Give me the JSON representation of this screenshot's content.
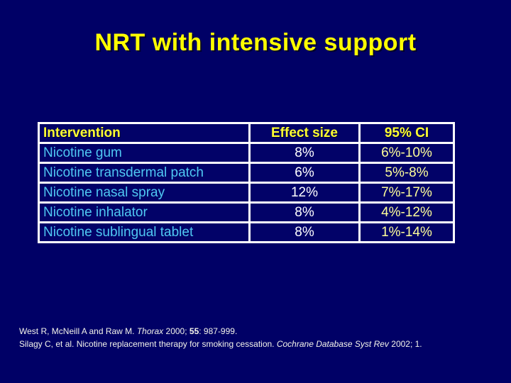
{
  "slide": {
    "title": "NRT with intensive support"
  },
  "table": {
    "columns": [
      {
        "label": "Intervention"
      },
      {
        "label": "Effect size"
      },
      {
        "label": "95% CI"
      }
    ],
    "rows": [
      {
        "intervention": "Nicotine gum",
        "effect_size": "8%",
        "ci": "6%-10%"
      },
      {
        "intervention": "Nicotine transdermal patch",
        "effect_size": "6%",
        "ci": "5%-8%"
      },
      {
        "intervention": "Nicotine nasal spray",
        "effect_size": "12%",
        "ci": "7%-17%"
      },
      {
        "intervention": "Nicotine inhalator",
        "effect_size": "8%",
        "ci": "4%-12%"
      },
      {
        "intervention": "Nicotine sublingual tablet",
        "effect_size": "8%",
        "ci": "1%-14%"
      }
    ]
  },
  "citations": {
    "lines": [
      {
        "segments": [
          {
            "text": "West R, McNeill A and Raw  M. ",
            "style": "normal"
          },
          {
            "text": "Thorax",
            "style": "italic"
          },
          {
            "text": " 2000; ",
            "style": "normal"
          },
          {
            "text": "55",
            "style": "bold"
          },
          {
            "text": ": 987-999.",
            "style": "normal"
          }
        ]
      },
      {
        "segments": [
          {
            "text": "Silagy C, et al. Nicotine replacement therapy for smoking cessation. ",
            "style": "normal"
          },
          {
            "text": "Cochrane Database Syst Rev",
            "style": "italic"
          },
          {
            "text": " 2002; 1.",
            "style": "normal"
          }
        ]
      }
    ]
  },
  "colors": {
    "background": "#000066",
    "title_text": "#FFFF00",
    "table_header_text": "#FFFF33",
    "intervention_text": "#4FC8F2",
    "effect_size_text": "#FFFFFF",
    "ci_text": "#FFFF99",
    "table_border": "#FFFFFF",
    "citation_text": "#F4F4EA"
  }
}
